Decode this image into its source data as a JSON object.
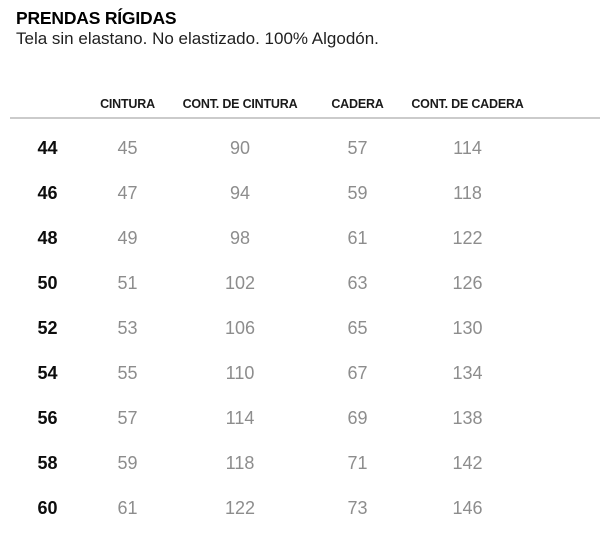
{
  "header": {
    "title": "PRENDAS RÍGIDAS",
    "subtitle": "Tela sin elastano. No elastizado. 100% Algodón."
  },
  "table": {
    "columns": [
      "CINTURA",
      "CONT. DE CINTURA",
      "CADERA",
      "CONT. DE CADERA"
    ],
    "rows": [
      {
        "size": "44",
        "values": [
          "45",
          "90",
          "57",
          "114"
        ]
      },
      {
        "size": "46",
        "values": [
          "47",
          "94",
          "59",
          "118"
        ]
      },
      {
        "size": "48",
        "values": [
          "49",
          "98",
          "61",
          "122"
        ]
      },
      {
        "size": "50",
        "values": [
          "51",
          "102",
          "63",
          "126"
        ]
      },
      {
        "size": "52",
        "values": [
          "53",
          "106",
          "65",
          "130"
        ]
      },
      {
        "size": "54",
        "values": [
          "55",
          "110",
          "67",
          "134"
        ]
      },
      {
        "size": "56",
        "values": [
          "57",
          "114",
          "69",
          "138"
        ]
      },
      {
        "size": "58",
        "values": [
          "59",
          "118",
          "71",
          "142"
        ]
      },
      {
        "size": "60",
        "values": [
          "61",
          "122",
          "73",
          "146"
        ]
      }
    ]
  },
  "colors": {
    "bg": "#ffffff",
    "title-color": "#000000",
    "subtitle-color": "#1f1f1f",
    "header-color": "#1a1a1a",
    "rule-color": "#cbcbcb",
    "size-color": "#0d0d0d",
    "value-color": "#8d8d8d"
  }
}
